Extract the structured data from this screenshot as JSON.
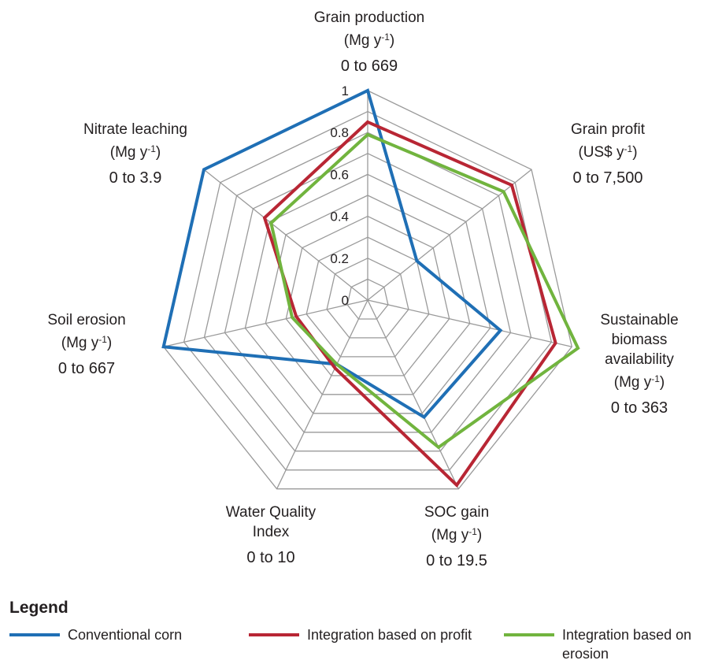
{
  "chart_data": {
    "type": "radar",
    "axes": [
      {
        "name": "Grain production",
        "unit_base": "Mg y",
        "unit_sup": "-1",
        "range": "0 to 669"
      },
      {
        "name": "Grain profit",
        "unit_base": "US$ y",
        "unit_sup": "-1",
        "range": "0 to 7,500"
      },
      {
        "name": "Sustainable biomass availability",
        "name_lines": [
          "Sustainable",
          "biomass",
          "availability"
        ],
        "unit_base": "Mg y",
        "unit_sup": "-1",
        "range": "0 to 363"
      },
      {
        "name": "SOC gain",
        "unit_base": "Mg y",
        "unit_sup": "-1",
        "range": "0 to 19.5"
      },
      {
        "name": "Water Quality Index",
        "name_lines": [
          "Water Quality",
          "Index"
        ],
        "unit_base": "",
        "unit_sup": "",
        "range": "0 to 10"
      },
      {
        "name": "Soil erosion",
        "unit_base": "Mg y",
        "unit_sup": "-1",
        "range": "0 to 667"
      },
      {
        "name": "Nitrate leaching",
        "unit_base": "Mg y",
        "unit_sup": "-1",
        "range": "0 to 3.9"
      }
    ],
    "rlim": [
      0,
      1
    ],
    "ticks": [
      "0",
      "0.2",
      "0.4",
      "0.6",
      "0.8",
      "1"
    ],
    "tick_values": [
      0,
      0.2,
      0.4,
      0.6,
      0.8,
      1
    ],
    "series": [
      {
        "name": "Conventional corn",
        "color": "#1f6fb5",
        "values": [
          1.0,
          0.3,
          0.65,
          0.62,
          0.34,
          1.0,
          1.0
        ]
      },
      {
        "name": "Integration based on profit",
        "color": "#b82634",
        "values": [
          0.85,
          0.88,
          0.92,
          0.98,
          0.36,
          0.35,
          0.63
        ]
      },
      {
        "name": "Integration based on erosion",
        "color": "#71b43e",
        "values": [
          0.79,
          0.83,
          1.03,
          0.78,
          0.34,
          0.37,
          0.59
        ]
      }
    ],
    "legend": {
      "title": "Legend",
      "placement": "bottom"
    }
  }
}
